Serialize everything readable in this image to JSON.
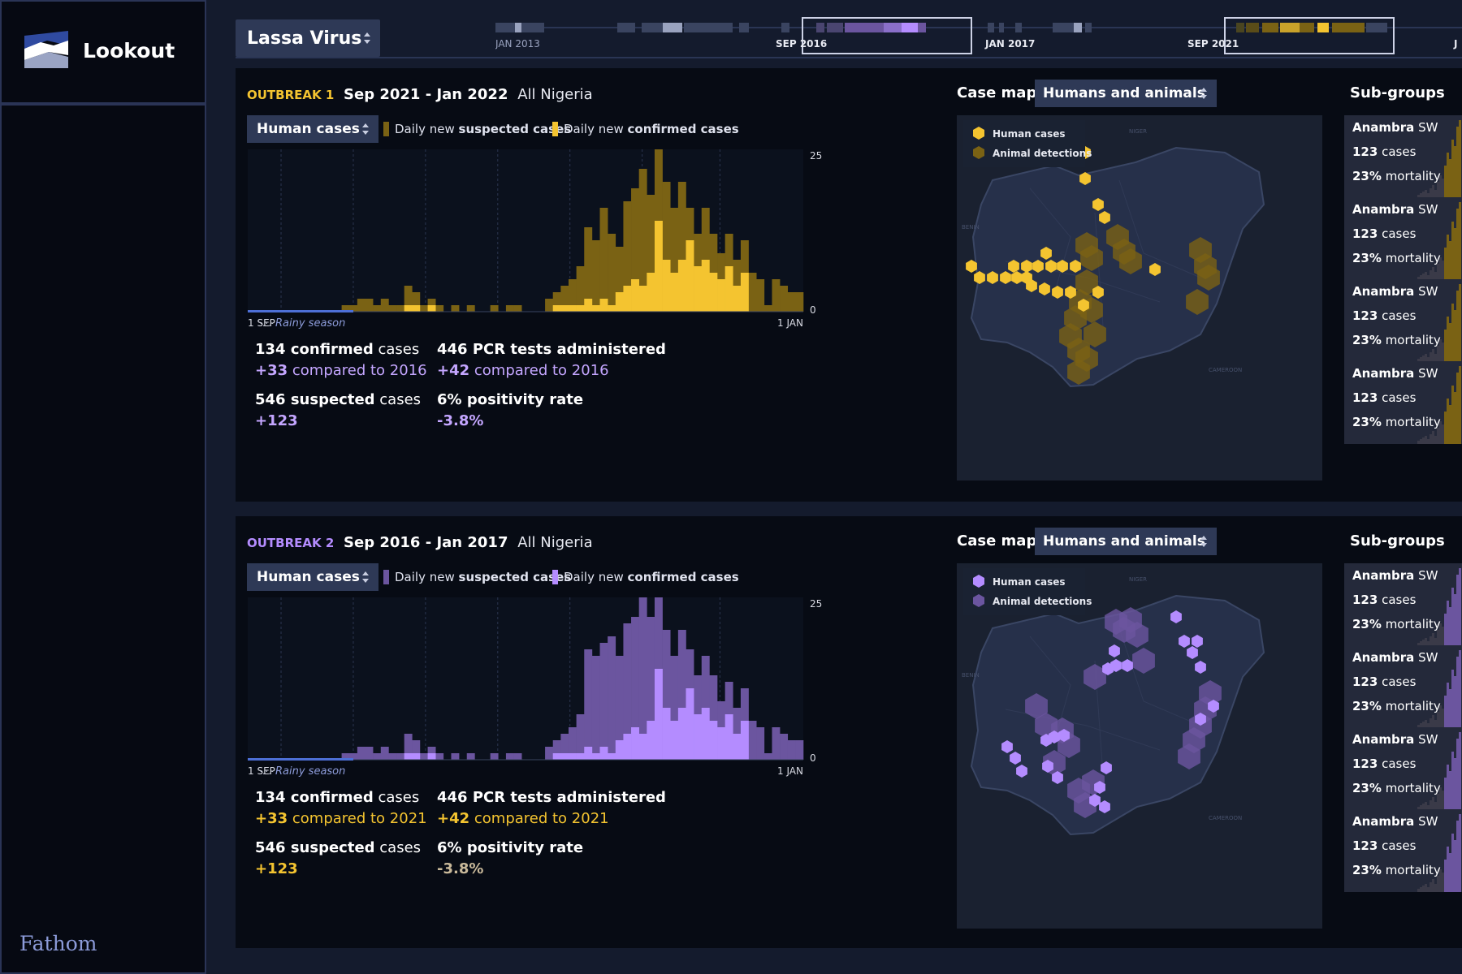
{
  "app": {
    "title": "Lookout",
    "brand": "Fathom"
  },
  "virus_select": {
    "value": "Lassa Virus"
  },
  "timeline": {
    "labels": [
      "JAN 2013",
      "SEP 2016",
      "JAN 2017",
      "SEP 2021",
      "J"
    ]
  },
  "colors": {
    "gold": "#f4c430",
    "gold_dark": "#7a6214",
    "purple": "#b48cff",
    "purple_dark": "#6b559f",
    "delta_purple": "#c4a6ff",
    "delta_gold": "#f4c430",
    "muted_axis": "#d8dae3"
  },
  "outbreaks": [
    {
      "label": "OUTBREAK 1",
      "dates": "Sep 2021 - Jan 2022",
      "scope": "All Nigeria",
      "human_select": "Human cases",
      "legend_prefix": "Daily new",
      "legend_suspected": "suspected cases",
      "legend_confirmed": "confirmed cases",
      "axis_start": "1 SEP",
      "axis_end": "1 JAN",
      "rainy_label": "Rainy season",
      "y_max_label": "25",
      "y_min_label": "0",
      "stats": {
        "confirmed_value": "134 confirmed",
        "confirmed_suffix": "cases",
        "confirmed_delta": "+33",
        "confirmed_delta_text": "compared to 2016",
        "pcr_value": "446 PCR tests administered",
        "pcr_delta": "+42",
        "pcr_delta_text": "compared to 2016",
        "suspected_value": "546 suspected",
        "suspected_suffix": "cases",
        "suspected_delta": "+123",
        "positivity_value": "6% positivity rate",
        "positivity_delta": "-3.8%"
      },
      "map": {
        "title": "Case map",
        "select": "Humans and animals",
        "legend_human": "Human cases",
        "legend_animal": "Animal detections",
        "country_labels": [
          "NIGER",
          "BENIN",
          "CAMEROON"
        ]
      },
      "subgroups": {
        "title": "Sub-groups",
        "items": [
          {
            "region": "Anambra",
            "suffix": "SW",
            "cases": "123",
            "cases_label": "cases",
            "mortality": "23%",
            "mortality_label": "mortality"
          },
          {
            "region": "Anambra",
            "suffix": "SW",
            "cases": "123",
            "cases_label": "cases",
            "mortality": "23%",
            "mortality_label": "mortality"
          },
          {
            "region": "Anambra",
            "suffix": "SW",
            "cases": "123",
            "cases_label": "cases",
            "mortality": "23%",
            "mortality_label": "mortality"
          },
          {
            "region": "Anambra",
            "suffix": "SW",
            "cases": "123",
            "cases_label": "cases",
            "mortality": "23%",
            "mortality_label": "mortality"
          }
        ]
      }
    },
    {
      "label": "OUTBREAK 2",
      "dates": "Sep 2016 - Jan 2017",
      "scope": "All Nigeria",
      "human_select": "Human cases",
      "legend_prefix": "Daily new",
      "legend_suspected": "suspected cases",
      "legend_confirmed": "confirmed cases",
      "axis_start": "1 SEP",
      "axis_end": "1 JAN",
      "rainy_label": "Rainy season",
      "y_max_label": "25",
      "y_min_label": "0",
      "stats": {
        "confirmed_value": "134 confirmed",
        "confirmed_suffix": "cases",
        "confirmed_delta": "+33",
        "confirmed_delta_text": "compared to 2021",
        "pcr_value": "446 PCR tests administered",
        "pcr_delta": "+42",
        "pcr_delta_text": "compared to 2021",
        "suspected_value": "546 suspected",
        "suspected_suffix": "cases",
        "suspected_delta": "+123",
        "positivity_value": "6% positivity rate",
        "positivity_delta": "-3.8%"
      },
      "map": {
        "title": "Case map",
        "select": "Humans and animals",
        "legend_human": "Human cases",
        "legend_animal": "Animal detections",
        "country_labels": [
          "NIGER",
          "BENIN",
          "CAMEROON"
        ]
      },
      "subgroups": {
        "title": "Sub-groups",
        "items": [
          {
            "region": "Anambra",
            "suffix": "SW",
            "cases": "123",
            "cases_label": "cases",
            "mortality": "23%",
            "mortality_label": "mortality"
          },
          {
            "region": "Anambra",
            "suffix": "SW",
            "cases": "123",
            "cases_label": "cases",
            "mortality": "23%",
            "mortality_label": "mortality"
          },
          {
            "region": "Anambra",
            "suffix": "SW",
            "cases": "123",
            "cases_label": "cases",
            "mortality": "23%",
            "mortality_label": "mortality"
          },
          {
            "region": "Anambra",
            "suffix": "SW",
            "cases": "123",
            "cases_label": "cases",
            "mortality": "23%",
            "mortality_label": "mortality"
          }
        ]
      }
    }
  ],
  "chart_data": [
    {
      "type": "bar",
      "ylim": [
        0,
        25
      ],
      "x_start": "1 SEP",
      "x_end": "1 JAN",
      "series": [
        {
          "name": "Daily new suspected cases",
          "values": [
            0,
            0,
            0,
            0,
            0,
            0,
            0,
            0,
            0,
            0,
            0,
            0,
            1,
            1,
            2,
            2,
            1,
            2,
            1,
            1,
            4,
            3,
            1,
            2,
            1,
            0,
            1,
            0,
            1,
            0,
            0,
            1,
            0,
            1,
            1,
            0,
            0,
            0,
            2,
            3,
            4,
            5,
            7,
            13,
            11,
            16,
            12,
            10,
            17,
            19,
            22,
            18,
            25,
            20,
            16,
            20,
            16,
            12,
            16,
            12,
            9,
            12,
            8,
            11,
            6,
            5,
            1,
            5,
            4,
            3,
            3
          ]
        },
        {
          "name": "Daily new confirmed cases",
          "values": [
            0,
            0,
            0,
            0,
            0,
            0,
            0,
            0,
            0,
            0,
            0,
            0,
            0,
            0,
            0,
            0,
            0,
            0,
            0,
            0,
            1,
            1,
            0,
            1,
            0,
            0,
            0,
            0,
            0,
            0,
            0,
            0,
            0,
            0,
            0,
            0,
            0,
            0,
            0,
            1,
            1,
            1,
            1,
            2,
            1,
            2,
            1,
            3,
            4,
            5,
            4,
            6,
            14,
            8,
            6,
            8,
            11,
            7,
            8,
            6,
            5,
            7,
            4,
            6,
            0,
            0,
            0,
            0,
            0,
            0,
            0
          ]
        }
      ]
    },
    {
      "type": "bar",
      "ylim": [
        0,
        25
      ],
      "x_start": "1 SEP",
      "x_end": "1 JAN",
      "series": [
        {
          "name": "Daily new suspected cases",
          "values": [
            0,
            0,
            0,
            0,
            0,
            0,
            0,
            0,
            0,
            0,
            0,
            0,
            1,
            1,
            2,
            2,
            1,
            2,
            1,
            1,
            4,
            3,
            1,
            2,
            1,
            0,
            1,
            0,
            1,
            0,
            0,
            1,
            0,
            1,
            1,
            0,
            0,
            0,
            2,
            3,
            4,
            5,
            7,
            17,
            16,
            18,
            19,
            16,
            21,
            22,
            25,
            22,
            25,
            20,
            16,
            20,
            17,
            13,
            16,
            13,
            9,
            12,
            8,
            11,
            6,
            5,
            1,
            5,
            4,
            3,
            3
          ]
        },
        {
          "name": "Daily new confirmed cases",
          "values": [
            0,
            0,
            0,
            0,
            0,
            0,
            0,
            0,
            0,
            0,
            0,
            0,
            0,
            0,
            0,
            0,
            0,
            0,
            0,
            0,
            1,
            1,
            0,
            1,
            0,
            0,
            0,
            0,
            0,
            0,
            0,
            0,
            0,
            0,
            0,
            0,
            0,
            0,
            0,
            1,
            1,
            1,
            1,
            2,
            1,
            2,
            1,
            3,
            4,
            5,
            4,
            6,
            14,
            8,
            6,
            8,
            11,
            7,
            8,
            6,
            5,
            7,
            4,
            6,
            0,
            0,
            0,
            0,
            0,
            0,
            0
          ]
        }
      ]
    }
  ]
}
